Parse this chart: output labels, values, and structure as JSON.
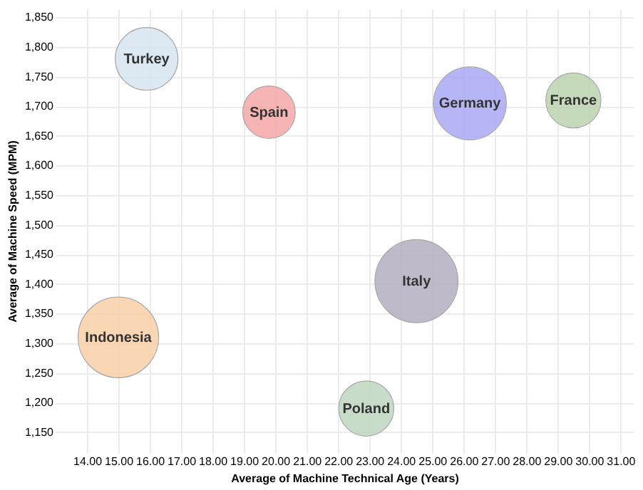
{
  "chart_data": {
    "type": "bubble",
    "xlabel": "Average of Machine Technical Age (Years)",
    "ylabel": "Average of Machine Speed (MPM)",
    "xlim": [
      13.0,
      31.4
    ],
    "ylim": [
      1115,
      1865
    ],
    "xticks": [
      {
        "value": 14,
        "label": "14.00"
      },
      {
        "value": 15,
        "label": "15.00"
      },
      {
        "value": 16,
        "label": "16.00"
      },
      {
        "value": 17,
        "label": "17.00"
      },
      {
        "value": 18,
        "label": "18.00"
      },
      {
        "value": 19,
        "label": "19.00"
      },
      {
        "value": 20,
        "label": "20.00"
      },
      {
        "value": 21,
        "label": "21.00"
      },
      {
        "value": 22,
        "label": "22.00"
      },
      {
        "value": 23,
        "label": "23.00"
      },
      {
        "value": 24,
        "label": "24.00"
      },
      {
        "value": 25,
        "label": "25.00"
      },
      {
        "value": 26,
        "label": "26.00"
      },
      {
        "value": 27,
        "label": "27.00"
      },
      {
        "value": 28,
        "label": "28.00"
      },
      {
        "value": 29,
        "label": "29.00"
      },
      {
        "value": 30,
        "label": "30.00"
      },
      {
        "value": 31,
        "label": "31.00"
      }
    ],
    "yticks": [
      {
        "value": 1150,
        "label": "1,150"
      },
      {
        "value": 1200,
        "label": "1,200"
      },
      {
        "value": 1250,
        "label": "1,250"
      },
      {
        "value": 1300,
        "label": "1,300"
      },
      {
        "value": 1350,
        "label": "1,350"
      },
      {
        "value": 1400,
        "label": "1,400"
      },
      {
        "value": 1450,
        "label": "1,450"
      },
      {
        "value": 1500,
        "label": "1,500"
      },
      {
        "value": 1550,
        "label": "1,550"
      },
      {
        "value": 1600,
        "label": "1,600"
      },
      {
        "value": 1650,
        "label": "1,650"
      },
      {
        "value": 1700,
        "label": "1,700"
      },
      {
        "value": 1750,
        "label": "1,750"
      },
      {
        "value": 1800,
        "label": "1,800"
      },
      {
        "value": 1850,
        "label": "1,850"
      }
    ],
    "grid": true,
    "legend": false,
    "series": [
      {
        "name": "Turkey",
        "color": "#d6e6f0",
        "x": [
          15.9
        ],
        "values": [
          1780
        ],
        "sizes": [
          0.57
        ]
      },
      {
        "name": "Spain",
        "color": "#f5a8a8",
        "x": [
          19.8
        ],
        "values": [
          1690
        ],
        "sizes": [
          0.4
        ]
      },
      {
        "name": "Germany",
        "color": "#aaaaf5",
        "x": [
          26.2
        ],
        "values": [
          1705
        ],
        "sizes": [
          0.77
        ]
      },
      {
        "name": "France",
        "color": "#bcd4b0",
        "x": [
          29.5
        ],
        "values": [
          1710
        ],
        "sizes": [
          0.44
        ]
      },
      {
        "name": "Italy",
        "color": "#b5afc0",
        "x": [
          24.5
        ],
        "values": [
          1405
        ],
        "sizes": [
          1
        ]
      },
      {
        "name": "Indonesia",
        "color": "#f9cfa8",
        "x": [
          15.0
        ],
        "values": [
          1310
        ],
        "sizes": [
          0.94
        ]
      },
      {
        "name": "Poland",
        "color": "#bed6c0",
        "x": [
          22.9
        ],
        "values": [
          1190
        ],
        "sizes": [
          0.44
        ]
      }
    ]
  }
}
